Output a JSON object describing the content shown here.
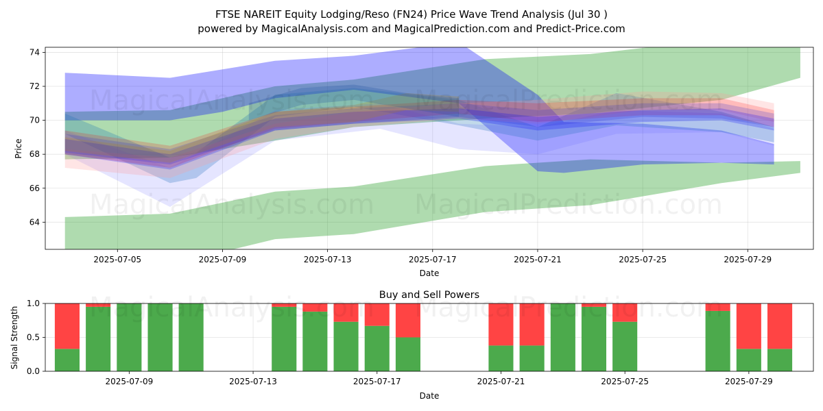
{
  "title": "FTSE NAREIT Equity Lodging/Reso (FN24) Price Wave Trend Analysis (Jul 30 )",
  "subtitle": "powered by MagicalAnalysis.com and MagicalPrediction.com and Predict-Price.com",
  "watermarks": [
    "MagicalAnalysis.com",
    "MagicalPrediction.com",
    "MagicalAnalysis.com",
    "MagicalPrediction.com",
    "MagicalAnalysis.com",
    "MagicalPrediction.com"
  ],
  "chart_data": [
    {
      "type": "area",
      "title": "",
      "xlabel": "Date",
      "ylabel": "Price",
      "xlim": [
        "2025-07-02T06:00",
        "2025-07-31T12:00"
      ],
      "ylim": [
        62.4,
        74.3
      ],
      "x_ticks": [
        "2025-07-05",
        "2025-07-09",
        "2025-07-13",
        "2025-07-17",
        "2025-07-21",
        "2025-07-25",
        "2025-07-29"
      ],
      "y_ticks": [
        64,
        66,
        68,
        70,
        72,
        74
      ],
      "grid": true,
      "bands": [
        {
          "color": "#2ca02c",
          "opacity": 0.38,
          "x": [
            "2025-07-03",
            "2025-07-07",
            "2025-07-11",
            "2025-07-14",
            "2025-07-19",
            "2025-07-23",
            "2025-07-28",
            "2025-07-31"
          ],
          "upper": [
            70.5,
            70.6,
            72.0,
            72.4,
            73.6,
            73.9,
            74.8,
            74.5
          ],
          "lower": [
            67.7,
            67.8,
            68.8,
            69.6,
            70.1,
            70.4,
            71.2,
            72.5
          ]
        },
        {
          "color": "#2ca02c",
          "opacity": 0.38,
          "x": [
            "2025-07-03",
            "2025-07-07",
            "2025-07-11",
            "2025-07-14",
            "2025-07-19",
            "2025-07-23",
            "2025-07-28",
            "2025-07-31"
          ],
          "upper": [
            64.3,
            64.5,
            65.8,
            66.1,
            67.3,
            67.7,
            67.5,
            67.6
          ],
          "lower": [
            62.2,
            61.5,
            63.0,
            63.3,
            64.6,
            65.0,
            66.3,
            66.9
          ]
        },
        {
          "color": "#0000ff",
          "opacity": 0.32,
          "x": [
            "2025-07-03",
            "2025-07-07",
            "2025-07-09",
            "2025-07-11",
            "2025-07-14",
            "2025-07-18",
            "2025-07-21",
            "2025-07-22",
            "2025-07-25",
            "2025-07-28",
            "2025-07-30"
          ],
          "upper": [
            72.8,
            72.5,
            73.0,
            73.5,
            73.8,
            74.6,
            71.5,
            69.9,
            69.8,
            69.4,
            68.6
          ],
          "lower": [
            70.0,
            70.0,
            70.5,
            71.3,
            71.8,
            71.0,
            67.0,
            66.9,
            67.4,
            67.5,
            67.4
          ]
        },
        {
          "color": "#1f77b4",
          "opacity": 0.28,
          "x": [
            "2025-07-03",
            "2025-07-07",
            "2025-07-08",
            "2025-07-11",
            "2025-07-14",
            "2025-07-18",
            "2025-07-21",
            "2025-07-24",
            "2025-07-28",
            "2025-07-30"
          ],
          "upper": [
            70.4,
            67.8,
            68.1,
            71.5,
            71.9,
            71.2,
            69.6,
            71.6,
            70.5,
            69.6
          ],
          "lower": [
            69.2,
            66.3,
            66.6,
            70.2,
            70.8,
            69.7,
            68.8,
            69.7,
            69.3,
            68.7
          ]
        },
        {
          "color": "#6060ff",
          "opacity": 0.16,
          "x": [
            "2025-07-03",
            "2025-07-07",
            "2025-07-11",
            "2025-07-15",
            "2025-07-18",
            "2025-07-21",
            "2025-07-24",
            "2025-07-28",
            "2025-07-30"
          ],
          "upper": [
            69.4,
            67.2,
            70.6,
            71.0,
            69.8,
            69.6,
            70.6,
            70.4,
            69.5
          ],
          "lower": [
            68.0,
            64.9,
            68.8,
            69.5,
            68.3,
            68.0,
            69.2,
            69.3,
            68.5
          ]
        },
        {
          "color": "#ff9999",
          "opacity": 0.26,
          "x": [
            "2025-07-03",
            "2025-07-07",
            "2025-07-11",
            "2025-07-14",
            "2025-07-18",
            "2025-07-21",
            "2025-07-25",
            "2025-07-28",
            "2025-07-30"
          ],
          "upper": [
            68.3,
            67.8,
            69.8,
            70.5,
            71.0,
            71.2,
            71.7,
            71.6,
            71.0
          ],
          "lower": [
            67.2,
            66.6,
            68.9,
            69.6,
            70.1,
            69.8,
            70.6,
            70.6,
            69.9
          ]
        },
        {
          "color": "#ff0000",
          "opacity": 0.18,
          "x": [
            "2025-07-03",
            "2025-07-07",
            "2025-07-11",
            "2025-07-14",
            "2025-07-18",
            "2025-07-21",
            "2025-07-25",
            "2025-07-28",
            "2025-07-30"
          ],
          "upper": [
            69.4,
            68.5,
            70.5,
            70.8,
            71.2,
            71.0,
            71.3,
            71.3,
            70.6
          ],
          "lower": [
            68.0,
            67.2,
            69.5,
            69.9,
            70.4,
            69.9,
            70.3,
            70.3,
            69.6
          ]
        },
        {
          "color": "#3333cc",
          "opacity": 0.22,
          "x": [
            "2025-07-03",
            "2025-07-07",
            "2025-07-11",
            "2025-07-14",
            "2025-07-18",
            "2025-07-21",
            "2025-07-25",
            "2025-07-28",
            "2025-07-30"
          ],
          "upper": [
            69.2,
            68.3,
            70.3,
            70.7,
            71.0,
            70.6,
            71.0,
            71.0,
            70.4
          ],
          "lower": [
            68.1,
            67.4,
            69.4,
            69.8,
            70.2,
            69.6,
            70.2,
            70.1,
            69.6
          ]
        },
        {
          "color": "#0000ff",
          "opacity": 0.22,
          "x": [
            "2025-07-03",
            "2025-07-07",
            "2025-07-11",
            "2025-07-14",
            "2025-07-18",
            "2025-07-21",
            "2025-07-25",
            "2025-07-28",
            "2025-07-30"
          ],
          "upper": [
            68.9,
            68.0,
            70.1,
            70.5,
            70.7,
            70.2,
            70.6,
            70.7,
            70.1
          ],
          "lower": [
            68.0,
            67.1,
            69.4,
            69.8,
            70.1,
            69.4,
            69.9,
            70.0,
            69.4
          ]
        },
        {
          "color": "#b8860b",
          "opacity": 0.22,
          "x": [
            "2025-07-03",
            "2025-07-07",
            "2025-07-11",
            "2025-07-14",
            "2025-07-16",
            "2025-07-18"
          ],
          "upper": [
            69.0,
            68.2,
            70.5,
            70.9,
            71.6,
            71.4
          ],
          "lower": [
            68.2,
            67.5,
            69.6,
            69.9,
            70.6,
            70.5
          ]
        },
        {
          "color": "#1f4fa0",
          "opacity": 0.25,
          "x": [
            "2025-07-10",
            "2025-07-12",
            "2025-07-14",
            "2025-07-16",
            "2025-07-18"
          ],
          "upper": [
            71.0,
            71.9,
            72.1,
            71.6,
            71.3
          ],
          "lower": [
            70.0,
            70.9,
            71.2,
            70.7,
            70.2
          ]
        }
      ]
    },
    {
      "type": "bar",
      "title": "Buy and Sell Powers",
      "xlabel": "Date",
      "ylabel": "Signal Strength",
      "xlim": [
        "2025-07-06T07:00",
        "2025-07-31T02:00"
      ],
      "ylim": [
        0,
        1.0
      ],
      "x_ticks": [
        "2025-07-09",
        "2025-07-13",
        "2025-07-17",
        "2025-07-21",
        "2025-07-25",
        "2025-07-29"
      ],
      "y_ticks": [
        "0.0",
        "0.5",
        "1.0"
      ],
      "grid": true,
      "buy_color": "#4caa4c",
      "sell_color": "#ff4444",
      "dates": [
        "2025-07-07",
        "2025-07-08",
        "2025-07-09",
        "2025-07-10",
        "2025-07-11",
        "2025-07-14",
        "2025-07-15",
        "2025-07-16",
        "2025-07-17",
        "2025-07-18",
        "2025-07-21",
        "2025-07-22",
        "2025-07-23",
        "2025-07-24",
        "2025-07-25",
        "2025-07-28",
        "2025-07-29",
        "2025-07-30"
      ],
      "buy": [
        0.33,
        0.95,
        1.0,
        1.0,
        1.0,
        0.95,
        0.88,
        0.73,
        0.67,
        0.5,
        0.38,
        0.38,
        1.0,
        0.95,
        0.73,
        0.89,
        0.33,
        0.33
      ]
    }
  ]
}
